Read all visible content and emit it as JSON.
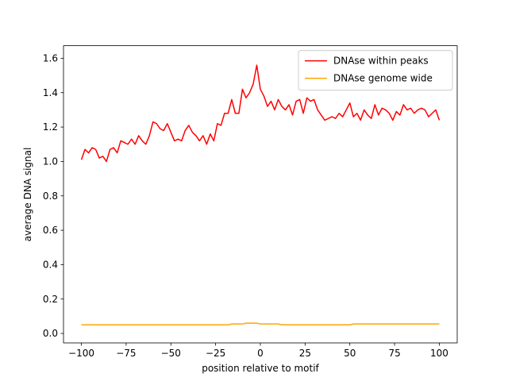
{
  "chart_data": {
    "type": "line",
    "xlabel": "position relative to motif",
    "ylabel": "average DNA signal",
    "x": [
      -100,
      -98,
      -96,
      -94,
      -92,
      -90,
      -88,
      -86,
      -84,
      -82,
      -80,
      -78,
      -76,
      -74,
      -72,
      -70,
      -68,
      -66,
      -64,
      -62,
      -60,
      -58,
      -56,
      -54,
      -52,
      -50,
      -48,
      -46,
      -44,
      -42,
      -40,
      -38,
      -36,
      -34,
      -32,
      -30,
      -28,
      -26,
      -24,
      -22,
      -20,
      -18,
      -16,
      -14,
      -12,
      -10,
      -8,
      -6,
      -4,
      -2,
      0,
      2,
      4,
      6,
      8,
      10,
      12,
      14,
      16,
      18,
      20,
      22,
      24,
      26,
      28,
      30,
      32,
      34,
      36,
      38,
      40,
      42,
      44,
      46,
      48,
      50,
      52,
      54,
      56,
      58,
      60,
      62,
      64,
      66,
      68,
      70,
      72,
      74,
      76,
      78,
      80,
      82,
      84,
      86,
      88,
      90,
      92,
      94,
      96,
      98,
      100
    ],
    "series": [
      {
        "name": "DNAse within peaks",
        "color": "#ff0000",
        "values": [
          1.01,
          1.07,
          1.05,
          1.08,
          1.07,
          1.02,
          1.03,
          1.0,
          1.07,
          1.08,
          1.05,
          1.12,
          1.11,
          1.1,
          1.13,
          1.1,
          1.15,
          1.12,
          1.1,
          1.15,
          1.23,
          1.22,
          1.19,
          1.18,
          1.22,
          1.17,
          1.12,
          1.13,
          1.12,
          1.18,
          1.21,
          1.17,
          1.15,
          1.12,
          1.15,
          1.1,
          1.16,
          1.12,
          1.22,
          1.21,
          1.28,
          1.28,
          1.36,
          1.28,
          1.28,
          1.42,
          1.37,
          1.4,
          1.45,
          1.56,
          1.42,
          1.38,
          1.32,
          1.35,
          1.3,
          1.36,
          1.32,
          1.3,
          1.33,
          1.27,
          1.35,
          1.36,
          1.28,
          1.37,
          1.35,
          1.36,
          1.3,
          1.27,
          1.24,
          1.25,
          1.26,
          1.25,
          1.28,
          1.26,
          1.3,
          1.34,
          1.26,
          1.28,
          1.24,
          1.3,
          1.27,
          1.25,
          1.33,
          1.27,
          1.31,
          1.3,
          1.28,
          1.24,
          1.29,
          1.27,
          1.33,
          1.3,
          1.31,
          1.28,
          1.3,
          1.31,
          1.3,
          1.26,
          1.28,
          1.3,
          1.24
        ]
      },
      {
        "name": "DNAse genome wide",
        "color": "#ffa500",
        "values": [
          0.05,
          0.05,
          0.05,
          0.05,
          0.05,
          0.05,
          0.05,
          0.05,
          0.05,
          0.05,
          0.05,
          0.05,
          0.05,
          0.05,
          0.05,
          0.05,
          0.05,
          0.05,
          0.05,
          0.05,
          0.05,
          0.05,
          0.05,
          0.05,
          0.05,
          0.05,
          0.05,
          0.05,
          0.05,
          0.05,
          0.05,
          0.05,
          0.05,
          0.05,
          0.05,
          0.05,
          0.05,
          0.05,
          0.05,
          0.05,
          0.05,
          0.05,
          0.055,
          0.055,
          0.055,
          0.055,
          0.06,
          0.06,
          0.06,
          0.06,
          0.055,
          0.055,
          0.055,
          0.055,
          0.055,
          0.055,
          0.05,
          0.05,
          0.05,
          0.05,
          0.05,
          0.05,
          0.05,
          0.05,
          0.05,
          0.05,
          0.05,
          0.05,
          0.05,
          0.05,
          0.05,
          0.05,
          0.05,
          0.05,
          0.05,
          0.05,
          0.055,
          0.055,
          0.055,
          0.055,
          0.055,
          0.055,
          0.055,
          0.055,
          0.055,
          0.055,
          0.055,
          0.055,
          0.055,
          0.055,
          0.055,
          0.055,
          0.055,
          0.055,
          0.055,
          0.055,
          0.055,
          0.055,
          0.055,
          0.055,
          0.055
        ]
      }
    ],
    "xlim": [
      -110,
      110
    ],
    "xticks": [
      {
        "value": -100,
        "label": "−100"
      },
      {
        "value": -75,
        "label": "−75"
      },
      {
        "value": -50,
        "label": "−50"
      },
      {
        "value": -25,
        "label": "−25"
      },
      0,
      25,
      50,
      75,
      100
    ],
    "ylim": [
      -0.055,
      1.673
    ],
    "yticks": [
      {
        "value": 0,
        "label": "0.0"
      },
      0.2,
      0.4,
      0.6,
      0.8,
      {
        "value": 1,
        "label": "1.0"
      },
      1.2,
      1.4,
      1.6
    ],
    "grid": false,
    "legend": "upper right"
  }
}
